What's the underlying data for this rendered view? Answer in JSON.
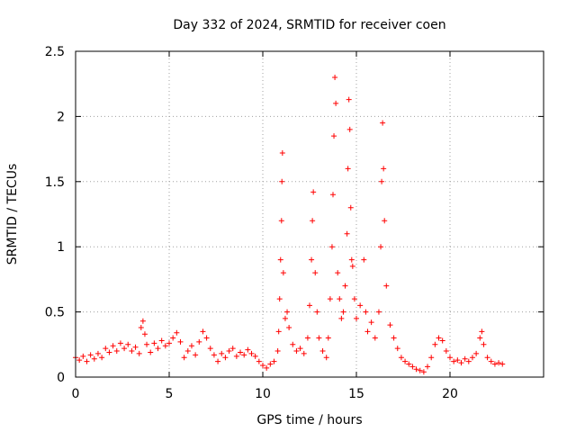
{
  "chart_data": {
    "type": "scatter",
    "title": "Day 332 of 2024, SRMTID for receiver coen",
    "xlabel": "GPS time / hours",
    "ylabel": "SRMTID / TECUs",
    "xlim": [
      0,
      25
    ],
    "ylim": [
      0,
      2.5
    ],
    "x_ticks": [
      "0",
      "5",
      "10",
      "15",
      "20"
    ],
    "x_tick_values": [
      0,
      5,
      10,
      15,
      20
    ],
    "y_ticks": [
      "0",
      "0.5",
      "1",
      "1.5",
      "2",
      "2.5"
    ],
    "y_tick_values": [
      0,
      0.5,
      1,
      1.5,
      2,
      2.5
    ],
    "grid": true,
    "marker": "+",
    "color": "#ff0000",
    "series": [
      {
        "name": "SRMTID",
        "points": [
          [
            0.0,
            0.15
          ],
          [
            0.2,
            0.13
          ],
          [
            0.4,
            0.16
          ],
          [
            0.6,
            0.12
          ],
          [
            0.8,
            0.17
          ],
          [
            1.0,
            0.14
          ],
          [
            1.2,
            0.18
          ],
          [
            1.4,
            0.15
          ],
          [
            1.6,
            0.22
          ],
          [
            1.8,
            0.19
          ],
          [
            2.0,
            0.24
          ],
          [
            2.2,
            0.2
          ],
          [
            2.4,
            0.26
          ],
          [
            2.6,
            0.22
          ],
          [
            2.8,
            0.25
          ],
          [
            3.0,
            0.2
          ],
          [
            3.2,
            0.23
          ],
          [
            3.4,
            0.18
          ],
          [
            3.5,
            0.38
          ],
          [
            3.6,
            0.43
          ],
          [
            3.7,
            0.33
          ],
          [
            3.8,
            0.25
          ],
          [
            4.0,
            0.19
          ],
          [
            4.2,
            0.26
          ],
          [
            4.4,
            0.22
          ],
          [
            4.6,
            0.28
          ],
          [
            4.8,
            0.24
          ],
          [
            5.0,
            0.26
          ],
          [
            5.2,
            0.3
          ],
          [
            5.4,
            0.34
          ],
          [
            5.6,
            0.27
          ],
          [
            5.8,
            0.15
          ],
          [
            6.0,
            0.2
          ],
          [
            6.2,
            0.24
          ],
          [
            6.4,
            0.17
          ],
          [
            6.6,
            0.27
          ],
          [
            6.8,
            0.35
          ],
          [
            7.0,
            0.3
          ],
          [
            7.2,
            0.22
          ],
          [
            7.4,
            0.17
          ],
          [
            7.6,
            0.12
          ],
          [
            7.8,
            0.18
          ],
          [
            8.0,
            0.15
          ],
          [
            8.2,
            0.2
          ],
          [
            8.4,
            0.22
          ],
          [
            8.6,
            0.16
          ],
          [
            8.8,
            0.19
          ],
          [
            9.0,
            0.17
          ],
          [
            9.2,
            0.21
          ],
          [
            9.4,
            0.18
          ],
          [
            9.6,
            0.16
          ],
          [
            9.8,
            0.12
          ],
          [
            10.0,
            0.09
          ],
          [
            10.2,
            0.07
          ],
          [
            10.4,
            0.1
          ],
          [
            10.6,
            0.12
          ],
          [
            10.8,
            0.2
          ],
          [
            10.85,
            0.35
          ],
          [
            10.9,
            0.6
          ],
          [
            10.95,
            0.9
          ],
          [
            11.0,
            1.2
          ],
          [
            11.02,
            1.5
          ],
          [
            11.05,
            1.72
          ],
          [
            11.1,
            0.8
          ],
          [
            11.2,
            0.45
          ],
          [
            11.3,
            0.5
          ],
          [
            11.4,
            0.38
          ],
          [
            11.6,
            0.25
          ],
          [
            11.8,
            0.2
          ],
          [
            12.0,
            0.22
          ],
          [
            12.2,
            0.18
          ],
          [
            12.4,
            0.3
          ],
          [
            12.5,
            0.55
          ],
          [
            12.6,
            0.9
          ],
          [
            12.65,
            1.2
          ],
          [
            12.7,
            1.42
          ],
          [
            12.8,
            0.8
          ],
          [
            12.9,
            0.5
          ],
          [
            13.0,
            0.3
          ],
          [
            13.2,
            0.2
          ],
          [
            13.4,
            0.15
          ],
          [
            13.5,
            0.3
          ],
          [
            13.6,
            0.6
          ],
          [
            13.7,
            1.0
          ],
          [
            13.75,
            1.4
          ],
          [
            13.8,
            1.85
          ],
          [
            13.85,
            2.3
          ],
          [
            13.9,
            2.1
          ],
          [
            14.0,
            0.8
          ],
          [
            14.1,
            0.6
          ],
          [
            14.2,
            0.45
          ],
          [
            14.3,
            0.5
          ],
          [
            14.4,
            0.7
          ],
          [
            14.5,
            1.1
          ],
          [
            14.55,
            1.6
          ],
          [
            14.6,
            2.13
          ],
          [
            14.65,
            1.9
          ],
          [
            14.7,
            1.3
          ],
          [
            14.75,
            0.9
          ],
          [
            14.8,
            0.85
          ],
          [
            14.9,
            0.6
          ],
          [
            15.0,
            0.45
          ],
          [
            15.2,
            0.55
          ],
          [
            15.4,
            0.9
          ],
          [
            15.5,
            0.5
          ],
          [
            15.6,
            0.35
          ],
          [
            15.8,
            0.42
          ],
          [
            16.0,
            0.3
          ],
          [
            16.2,
            0.5
          ],
          [
            16.3,
            1.0
          ],
          [
            16.35,
            1.5
          ],
          [
            16.4,
            1.95
          ],
          [
            16.45,
            1.6
          ],
          [
            16.5,
            1.2
          ],
          [
            16.6,
            0.7
          ],
          [
            16.8,
            0.4
          ],
          [
            17.0,
            0.3
          ],
          [
            17.2,
            0.22
          ],
          [
            17.4,
            0.15
          ],
          [
            17.6,
            0.12
          ],
          [
            17.8,
            0.1
          ],
          [
            18.0,
            0.08
          ],
          [
            18.2,
            0.06
          ],
          [
            18.4,
            0.05
          ],
          [
            18.6,
            0.04
          ],
          [
            18.8,
            0.08
          ],
          [
            19.0,
            0.15
          ],
          [
            19.2,
            0.25
          ],
          [
            19.4,
            0.3
          ],
          [
            19.6,
            0.28
          ],
          [
            19.8,
            0.2
          ],
          [
            20.0,
            0.15
          ],
          [
            20.2,
            0.12
          ],
          [
            20.4,
            0.13
          ],
          [
            20.6,
            0.11
          ],
          [
            20.8,
            0.14
          ],
          [
            21.0,
            0.12
          ],
          [
            21.2,
            0.15
          ],
          [
            21.4,
            0.18
          ],
          [
            21.6,
            0.3
          ],
          [
            21.7,
            0.35
          ],
          [
            21.8,
            0.25
          ],
          [
            22.0,
            0.15
          ],
          [
            22.2,
            0.12
          ],
          [
            22.4,
            0.1
          ],
          [
            22.6,
            0.11
          ],
          [
            22.8,
            0.1
          ]
        ]
      }
    ]
  }
}
